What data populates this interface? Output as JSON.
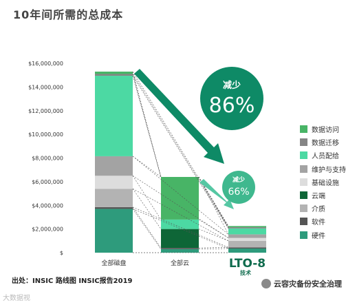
{
  "title": "10年间所需的总成本",
  "source": "出处：INSIC 路线图 INSIC报告2019",
  "watermark_left": "大数据视",
  "watermark_right": "云容灾备份安全治理",
  "callouts": {
    "big": {
      "label": "减少",
      "value": "86%"
    },
    "small": {
      "label": "减少",
      "value": "66%"
    }
  },
  "lto_sub": "技术",
  "chart_data": {
    "type": "bar",
    "stacked": true,
    "ylim": [
      0,
      16000000
    ],
    "yticks": [
      "$",
      "$2,000,000",
      "$4,000,000",
      "$6,000,000",
      "$8,000,000",
      "$10,000,000",
      "$12,000,000",
      "$14,000,000",
      "$16,000,000"
    ],
    "categories": [
      "全部磁盘",
      "全部云",
      "LTO-8"
    ],
    "series": [
      {
        "name": "硬件",
        "color": "#2e9b7c",
        "values": [
          3700000,
          300000,
          350000
        ]
      },
      {
        "name": "软件",
        "color": "#555555",
        "values": [
          150000,
          100000,
          100000
        ]
      },
      {
        "name": "介质",
        "color": "#b3b3b3",
        "values": [
          1550000,
          0,
          550000
        ]
      },
      {
        "name": "云端",
        "color": "#0e6637",
        "values": [
          0,
          1600000,
          0
        ]
      },
      {
        "name": "基础设施",
        "color": "#dddddd",
        "values": [
          1100000,
          0,
          250000
        ]
      },
      {
        "name": "维护与支持",
        "color": "#a3a3a3",
        "values": [
          1650000,
          0,
          300000
        ]
      },
      {
        "name": "人员配给",
        "color": "#4cd9a3",
        "values": [
          6800000,
          800000,
          500000
        ]
      },
      {
        "name": "数据迁移",
        "color": "#858585",
        "values": [
          150000,
          0,
          100000
        ]
      },
      {
        "name": "数据访问",
        "color": "#48b466",
        "values": [
          200000,
          3600000,
          100000
        ]
      }
    ]
  }
}
